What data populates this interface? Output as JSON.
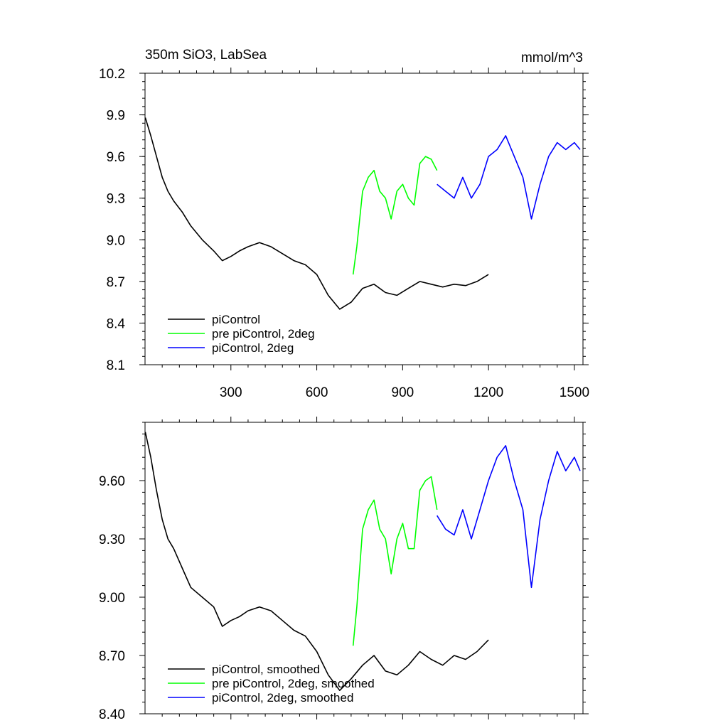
{
  "chart_data": [
    {
      "type": "line",
      "title": "350m SiO3, LabSea",
      "units": "mmol/m^3",
      "xlim": [
        0,
        1530
      ],
      "ylim": [
        8.1,
        10.2
      ],
      "x_ticks": [
        300,
        600,
        900,
        1200,
        1500
      ],
      "y_ticks": [
        8.1,
        8.4,
        8.7,
        9.0,
        9.3,
        9.6,
        9.9,
        10.2
      ],
      "x_tick_labels": [
        "300",
        "600",
        "900",
        "1200",
        "1500"
      ],
      "y_tick_labels": [
        "8.1",
        "8.4",
        "8.7",
        "9.0",
        "9.3",
        "9.6",
        "9.9",
        "10.2"
      ],
      "grid": false,
      "legend_position": "bottom-left",
      "series": [
        {
          "name": "piControl",
          "color": "#000000",
          "x": [
            1,
            20,
            40,
            60,
            80,
            100,
            130,
            160,
            200,
            240,
            270,
            300,
            330,
            360,
            400,
            440,
            480,
            520,
            560,
            600,
            640,
            680,
            720,
            760,
            800,
            840,
            880,
            920,
            960,
            1000,
            1040,
            1080,
            1120,
            1160,
            1200
          ],
          "y": [
            9.88,
            9.75,
            9.6,
            9.45,
            9.35,
            9.28,
            9.2,
            9.1,
            9.0,
            8.92,
            8.85,
            8.88,
            8.92,
            8.95,
            8.98,
            8.95,
            8.9,
            8.85,
            8.82,
            8.75,
            8.6,
            8.5,
            8.55,
            8.65,
            8.68,
            8.62,
            8.6,
            8.65,
            8.7,
            8.68,
            8.66,
            8.68,
            8.67,
            8.7,
            8.75
          ]
        },
        {
          "name": "pre piControl, 2deg",
          "color": "#00ff00",
          "x": [
            727,
            740,
            760,
            780,
            800,
            820,
            840,
            860,
            880,
            900,
            920,
            940,
            960,
            980,
            1000,
            1020
          ],
          "y": [
            8.75,
            8.95,
            9.35,
            9.45,
            9.5,
            9.35,
            9.3,
            9.15,
            9.35,
            9.4,
            9.3,
            9.25,
            9.55,
            9.6,
            9.58,
            9.5
          ]
        },
        {
          "name": "piControl, 2deg",
          "color": "#0000ff",
          "x": [
            1020,
            1050,
            1080,
            1110,
            1140,
            1170,
            1200,
            1230,
            1260,
            1290,
            1320,
            1350,
            1380,
            1410,
            1440,
            1470,
            1500,
            1520
          ],
          "y": [
            9.4,
            9.35,
            9.3,
            9.45,
            9.3,
            9.4,
            9.6,
            9.65,
            9.75,
            9.6,
            9.45,
            9.15,
            9.4,
            9.6,
            9.7,
            9.65,
            9.7,
            9.65
          ]
        }
      ]
    },
    {
      "type": "line",
      "title": "",
      "xlim": [
        0,
        1530
      ],
      "ylim": [
        8.4,
        9.9
      ],
      "x_ticks": [
        300,
        600,
        900,
        1200,
        1500
      ],
      "y_ticks": [
        8.4,
        8.7,
        9.0,
        9.3,
        9.6
      ],
      "y_tick_labels": [
        "8.40",
        "8.70",
        "9.00",
        "9.30",
        "9.60"
      ],
      "grid": false,
      "legend_position": "bottom-left",
      "series": [
        {
          "name": "piControl, smoothed",
          "color": "#000000",
          "x": [
            1,
            20,
            40,
            60,
            80,
            100,
            130,
            160,
            200,
            240,
            270,
            300,
            330,
            360,
            400,
            440,
            480,
            520,
            560,
            600,
            640,
            680,
            720,
            760,
            800,
            840,
            880,
            920,
            960,
            1000,
            1040,
            1080,
            1120,
            1160,
            1200
          ],
          "y": [
            9.85,
            9.72,
            9.55,
            9.4,
            9.3,
            9.25,
            9.15,
            9.05,
            9.0,
            8.95,
            8.85,
            8.88,
            8.9,
            8.93,
            8.95,
            8.93,
            8.88,
            8.83,
            8.8,
            8.72,
            8.6,
            8.52,
            8.58,
            8.65,
            8.7,
            8.62,
            8.6,
            8.65,
            8.72,
            8.68,
            8.65,
            8.7,
            8.68,
            8.72,
            8.78
          ]
        },
        {
          "name": "pre piControl, 2deg, smoothed",
          "color": "#00ff00",
          "x": [
            727,
            740,
            760,
            780,
            800,
            820,
            840,
            860,
            880,
            900,
            920,
            940,
            960,
            980,
            1000,
            1020
          ],
          "y": [
            8.75,
            8.95,
            9.35,
            9.45,
            9.5,
            9.35,
            9.3,
            9.12,
            9.3,
            9.38,
            9.25,
            9.25,
            9.55,
            9.6,
            9.62,
            9.45
          ]
        },
        {
          "name": "piControl, 2deg, smoothed",
          "color": "#0000ff",
          "x": [
            1020,
            1050,
            1080,
            1110,
            1140,
            1170,
            1200,
            1230,
            1260,
            1290,
            1320,
            1350,
            1380,
            1410,
            1440,
            1470,
            1500,
            1520
          ],
          "y": [
            9.42,
            9.35,
            9.32,
            9.45,
            9.3,
            9.45,
            9.6,
            9.72,
            9.78,
            9.6,
            9.45,
            9.05,
            9.4,
            9.6,
            9.75,
            9.65,
            9.72,
            9.65
          ]
        }
      ]
    }
  ]
}
